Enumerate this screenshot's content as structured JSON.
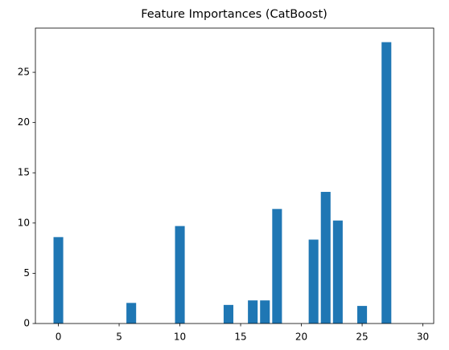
{
  "chart_data": {
    "type": "bar",
    "title": "Feature Importances (CatBoost)",
    "x": [
      0,
      1,
      2,
      3,
      4,
      5,
      6,
      7,
      8,
      9,
      10,
      11,
      12,
      13,
      14,
      15,
      16,
      17,
      18,
      19,
      20,
      21,
      22,
      23,
      24,
      25,
      26,
      27,
      28,
      29
    ],
    "values": [
      8.6,
      0,
      0,
      0,
      0,
      0,
      2.05,
      0,
      0,
      0,
      9.7,
      0,
      0,
      0,
      1.85,
      0,
      2.3,
      2.3,
      11.4,
      0,
      0,
      8.35,
      13.1,
      10.25,
      0,
      1.75,
      0,
      28.0,
      0,
      0
    ],
    "color": "#1f77b4",
    "xlim": [
      -1.89,
      30.89
    ],
    "xticks": [
      0,
      5,
      10,
      15,
      20,
      25,
      30
    ],
    "ylim": [
      0,
      29.4
    ],
    "yticks": [
      0,
      5,
      10,
      15,
      20,
      25
    ]
  }
}
